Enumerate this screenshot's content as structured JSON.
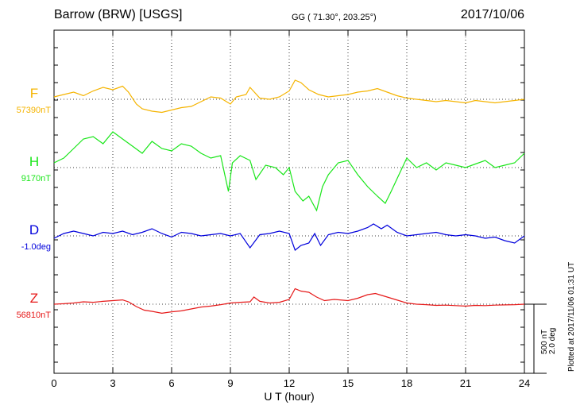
{
  "header": {
    "station": "Barrow (BRW)  [USGS]",
    "coords": "GG ( 71.30°, 203.25°)",
    "date": "2017/10/06"
  },
  "chart_data": {
    "type": "line",
    "title": "Barrow (BRW)  [USGS]",
    "xlabel": "U T (hour)",
    "xlim": [
      0,
      24
    ],
    "xticks": [
      "0",
      "3",
      "6",
      "9",
      "12",
      "15",
      "18",
      "21",
      "24"
    ],
    "grid": true,
    "scale_bar": {
      "nT": "500 nT",
      "deg": "2.0 deg"
    },
    "plotted_note": "Plotted at 2017/11/06 01:31  UT",
    "series": [
      {
        "name": "F",
        "baseline": "57390nT",
        "color": "#f5b400",
        "x": [
          0,
          0.5,
          1,
          1.5,
          2,
          2.5,
          3,
          3.5,
          3.8,
          4.2,
          4.5,
          5,
          5.5,
          6,
          6.5,
          7,
          7.5,
          8,
          8.5,
          9,
          9.3,
          9.8,
          10,
          10.5,
          11,
          11.5,
          12,
          12.3,
          12.6,
          13,
          13.5,
          14,
          14.5,
          15,
          15.5,
          16,
          16.5,
          17,
          17.5,
          18,
          18.5,
          19,
          19.5,
          20,
          20.5,
          21,
          21.5,
          22,
          22.5,
          23,
          23.5,
          24
        ],
        "y": [
          0.1,
          0.2,
          0.3,
          0.15,
          0.35,
          0.5,
          0.4,
          0.55,
          0.3,
          -0.2,
          -0.4,
          -0.5,
          -0.55,
          -0.45,
          -0.35,
          -0.3,
          -0.1,
          0.1,
          0.05,
          -0.2,
          0.1,
          0.2,
          0.5,
          0.05,
          0.0,
          0.1,
          0.35,
          0.8,
          0.7,
          0.4,
          0.2,
          0.1,
          0.15,
          0.2,
          0.3,
          0.35,
          0.45,
          0.3,
          0.15,
          0.05,
          0.0,
          -0.05,
          -0.1,
          -0.05,
          -0.1,
          -0.15,
          -0.05,
          -0.1,
          -0.15,
          -0.1,
          -0.05,
          0.0
        ]
      },
      {
        "name": "H",
        "baseline": "9170nT",
        "color": "#19e619",
        "x": [
          0,
          0.5,
          1,
          1.5,
          2,
          2.5,
          3,
          3.5,
          4,
          4.5,
          5,
          5.5,
          6,
          6.5,
          7,
          7.5,
          8,
          8.5,
          8.9,
          9.1,
          9.5,
          10,
          10.3,
          10.8,
          11.3,
          11.7,
          12,
          12.3,
          12.7,
          13,
          13.4,
          13.7,
          14,
          14.5,
          15,
          15.5,
          16,
          16.5,
          16.9,
          17.2,
          17.6,
          18,
          18.5,
          19,
          19.5,
          20,
          20.5,
          21,
          21.5,
          22,
          22.5,
          23,
          23.5,
          24
        ],
        "y": [
          0.2,
          0.4,
          0.8,
          1.2,
          1.3,
          1.0,
          1.5,
          1.2,
          0.9,
          0.6,
          1.1,
          0.8,
          0.7,
          1.0,
          0.9,
          0.6,
          0.4,
          0.5,
          -1.0,
          0.2,
          0.5,
          0.3,
          -0.5,
          0.1,
          0.0,
          -0.3,
          0.0,
          -1.0,
          -1.4,
          -1.2,
          -1.8,
          -0.8,
          -0.3,
          0.2,
          0.3,
          -0.3,
          -0.8,
          -1.2,
          -1.5,
          -1.0,
          -0.3,
          0.4,
          0.0,
          0.2,
          -0.1,
          0.2,
          0.1,
          0.0,
          0.15,
          0.3,
          0.0,
          0.1,
          0.2,
          0.6
        ]
      },
      {
        "name": "D",
        "baseline": "-1.0deg",
        "color": "#0000dc",
        "x": [
          0,
          0.5,
          1,
          1.5,
          2,
          2.5,
          3,
          3.5,
          4,
          4.5,
          5,
          5.5,
          6,
          6.5,
          7,
          7.5,
          8,
          8.5,
          9,
          9.5,
          10,
          10.5,
          11,
          11.5,
          12,
          12.3,
          12.6,
          13,
          13.3,
          13.6,
          14,
          14.5,
          15,
          15.5,
          16,
          16.3,
          16.7,
          17,
          17.5,
          18,
          18.5,
          19,
          19.5,
          20,
          20.5,
          21,
          21.5,
          22,
          22.5,
          23,
          23.5,
          24
        ],
        "y": [
          -0.1,
          0.1,
          0.2,
          0.1,
          0.0,
          0.15,
          0.1,
          0.2,
          0.05,
          0.15,
          0.3,
          0.1,
          -0.05,
          0.15,
          0.1,
          0.0,
          0.05,
          0.1,
          0.0,
          0.1,
          -0.5,
          0.05,
          0.1,
          0.2,
          0.1,
          -0.6,
          -0.4,
          -0.3,
          0.1,
          -0.4,
          0.05,
          0.15,
          0.1,
          0.2,
          0.35,
          0.5,
          0.3,
          0.45,
          0.15,
          0.0,
          0.05,
          0.1,
          0.15,
          0.05,
          0.0,
          0.05,
          0.0,
          -0.1,
          -0.05,
          -0.2,
          -0.3,
          0.0
        ]
      },
      {
        "name": "Z",
        "baseline": "56810nT",
        "color": "#e61919",
        "x": [
          0,
          0.5,
          1,
          1.5,
          2,
          2.5,
          3,
          3.5,
          3.8,
          4.2,
          4.6,
          5,
          5.5,
          6,
          6.5,
          7,
          7.5,
          8,
          8.5,
          9,
          9.5,
          10,
          10.2,
          10.5,
          11,
          11.5,
          12,
          12.3,
          12.6,
          13,
          13.4,
          13.8,
          14.3,
          15,
          15.5,
          16,
          16.4,
          16.8,
          17.2,
          17.6,
          18,
          18.5,
          19,
          19.5,
          20,
          20.5,
          21,
          21.5,
          22,
          22.5,
          23,
          23.5,
          24
        ],
        "y": [
          0.0,
          0.02,
          0.05,
          0.1,
          0.08,
          0.12,
          0.15,
          0.18,
          0.1,
          -0.1,
          -0.25,
          -0.3,
          -0.38,
          -0.32,
          -0.28,
          -0.2,
          -0.12,
          -0.08,
          -0.02,
          0.05,
          0.08,
          0.1,
          0.3,
          0.12,
          0.05,
          0.08,
          0.2,
          0.65,
          0.55,
          0.5,
          0.3,
          0.15,
          0.2,
          0.15,
          0.25,
          0.4,
          0.45,
          0.35,
          0.25,
          0.15,
          0.05,
          0.0,
          -0.02,
          -0.05,
          -0.04,
          -0.06,
          -0.08,
          -0.05,
          -0.06,
          -0.04,
          -0.03,
          -0.02,
          0.0
        ]
      }
    ]
  }
}
